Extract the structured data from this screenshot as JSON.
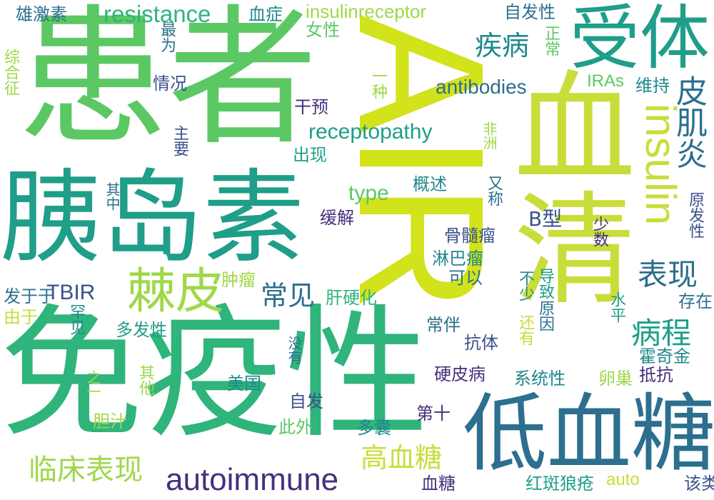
{
  "colors": {
    "background": "#ffffff",
    "palette": [
      "#d2e21b",
      "#c9dd3a",
      "#9fd84a",
      "#5cc864",
      "#2fb47c",
      "#1f9e89",
      "#21888d",
      "#2c6f8e",
      "#3b528b",
      "#472f7d"
    ]
  },
  "words": {
    "AIR": "AIR",
    "mianyixing": "免疫性",
    "huanzhe": "患者",
    "yidaosu": "胰岛素",
    "xuetang_di": "低血糖",
    "xueqing": "血清",
    "shouti": "受体",
    "insulin": "insulin",
    "jipi": "棘皮",
    "autoimmune": "autoimmune",
    "linchuang": "临床表现",
    "gaoxuetang": "高血糖",
    "jibing": "疾病",
    "pijiyan": "皮肌炎",
    "biaoxian": "表现",
    "bingcheng": "病程",
    "changjian": "常见",
    "resistance": "resistance",
    "insulinreceptor": "insulinreceptor",
    "receptopathy": "receptopathy",
    "antibodies": "antibodies",
    "type": "type",
    "TBIR": "TBIR",
    "Bxing": "B型",
    "IRAs": "IRAs",
    "auto": "auto",
    "xiongjisu": "雄激素",
    "xuezheng": "血症",
    "nvxing": "女性",
    "zifaxing": "自发性",
    "zhengchang": "正常",
    "zuiwei": "最为",
    "zonghezheng": "综合征",
    "qingkuang": "情况",
    "yizhong": "一种",
    "weichi": "维持",
    "ganyu": "干预",
    "feizhou": "非洲",
    "zhuyao": "主要",
    "chuxian": "出现",
    "gaishu": "概述",
    "youcheng": "又称",
    "qizhong": "其中",
    "huanjie": "缓解",
    "yuanfaxing": "原发性",
    "gusuiliu": "骨髓瘤",
    "linbaliu": "淋巴瘤",
    "keyi": "可以",
    "shaoshu": "少数",
    "fayuyu": "发于于",
    "zhongliu": "肿瘤",
    "ganyinghua": "肝硬化",
    "buxiao": "不少",
    "daozhi": "导致",
    "cunzai": "存在",
    "youyu": "由于",
    "hanjian": "罕见",
    "duofaxing": "多发性",
    "changban": "常伴",
    "kangti": "抗体",
    "haiyou": "还有",
    "yuanyin": "原因",
    "shuiping": "水平",
    "huoqijin": "霍奇金",
    "meiyou": "没有",
    "yinghuabing": "硬皮病",
    "xitongxing": "系统性",
    "luanchao": "卵巢",
    "dikang": "抵抗",
    "qita": "其他",
    "zhiyi": "之一",
    "meiguo": "美国",
    "zifa": "自发",
    "danzhi": "胆汁",
    "ciwai": "此外",
    "duonang": "多囊",
    "dishi": "第十",
    "xuetang": "血糖",
    "hongban": "红斑狼疮",
    "gailei": "该类"
  }
}
